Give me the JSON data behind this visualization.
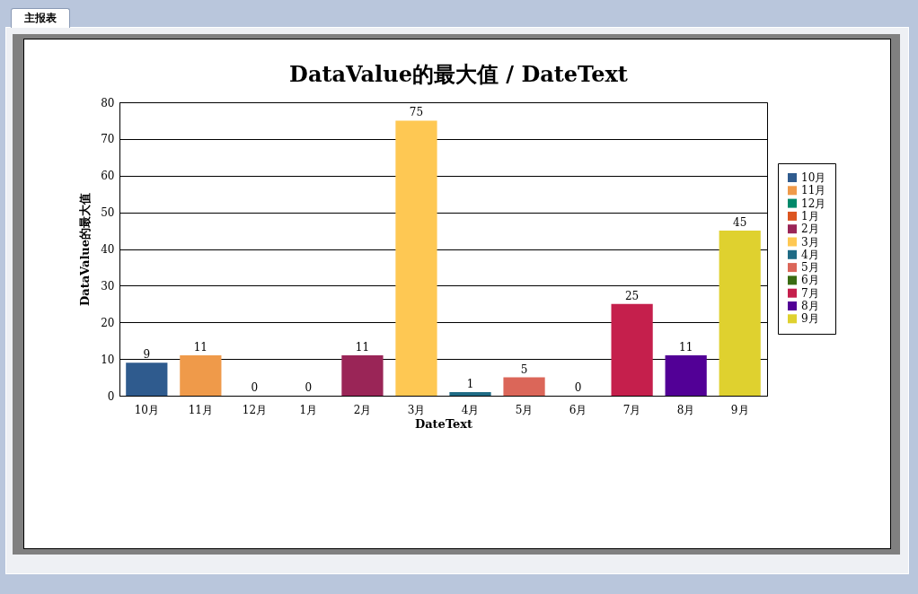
{
  "chart_data": {
    "type": "bar",
    "title": "DataValue的最大值 / DateText",
    "xlabel": "DateText",
    "ylabel": "DataValue的最大值",
    "categories": [
      "10月",
      "11月",
      "12月",
      "1月",
      "2月",
      "3月",
      "4月",
      "5月",
      "6月",
      "7月",
      "8月",
      "9月"
    ],
    "series": [
      {
        "name": "10月",
        "color": "#2f5b8e",
        "values": [
          9,
          null,
          null,
          null,
          null,
          null,
          null,
          null,
          null,
          null,
          null,
          null
        ]
      },
      {
        "name": "11月",
        "color": "#ef9a4a",
        "values": [
          null,
          11,
          null,
          null,
          null,
          null,
          null,
          null,
          null,
          null,
          null,
          null
        ]
      },
      {
        "name": "12月",
        "color": "#00896a",
        "values": [
          null,
          null,
          0,
          null,
          null,
          null,
          null,
          null,
          null,
          null,
          null,
          null
        ]
      },
      {
        "name": "1月",
        "color": "#dc5520",
        "values": [
          null,
          null,
          null,
          0,
          null,
          null,
          null,
          null,
          null,
          null,
          null,
          null
        ]
      },
      {
        "name": "2月",
        "color": "#9a2557",
        "values": [
          null,
          null,
          null,
          null,
          11,
          null,
          null,
          null,
          null,
          null,
          null,
          null
        ]
      },
      {
        "name": "3月",
        "color": "#fec853",
        "values": [
          null,
          null,
          null,
          null,
          null,
          75,
          null,
          null,
          null,
          null,
          null,
          null
        ]
      },
      {
        "name": "4月",
        "color": "#1f6b85",
        "values": [
          null,
          null,
          null,
          null,
          null,
          null,
          1,
          null,
          null,
          null,
          null,
          null
        ]
      },
      {
        "name": "5月",
        "color": "#db6659",
        "values": [
          null,
          null,
          null,
          null,
          null,
          null,
          null,
          5,
          null,
          null,
          null,
          null
        ]
      },
      {
        "name": "6月",
        "color": "#3a6b12",
        "values": [
          null,
          null,
          null,
          null,
          null,
          null,
          null,
          null,
          0,
          null,
          null,
          null
        ]
      },
      {
        "name": "7月",
        "color": "#c51f4c",
        "values": [
          null,
          null,
          null,
          null,
          null,
          null,
          null,
          null,
          null,
          25,
          null,
          null
        ]
      },
      {
        "name": "8月",
        "color": "#520096",
        "values": [
          null,
          null,
          null,
          null,
          null,
          null,
          null,
          null,
          null,
          null,
          11,
          null
        ]
      },
      {
        "name": "9月",
        "color": "#dfd12f",
        "values": [
          null,
          null,
          null,
          null,
          null,
          null,
          null,
          null,
          null,
          null,
          null,
          45
        ]
      }
    ],
    "ylim": [
      0,
      80
    ],
    "yticks": [
      0,
      10,
      20,
      30,
      40,
      50,
      60,
      70,
      80
    ],
    "grid": "y",
    "legend": "right",
    "data_labels": true,
    "annotations": [
      "主报表"
    ]
  }
}
